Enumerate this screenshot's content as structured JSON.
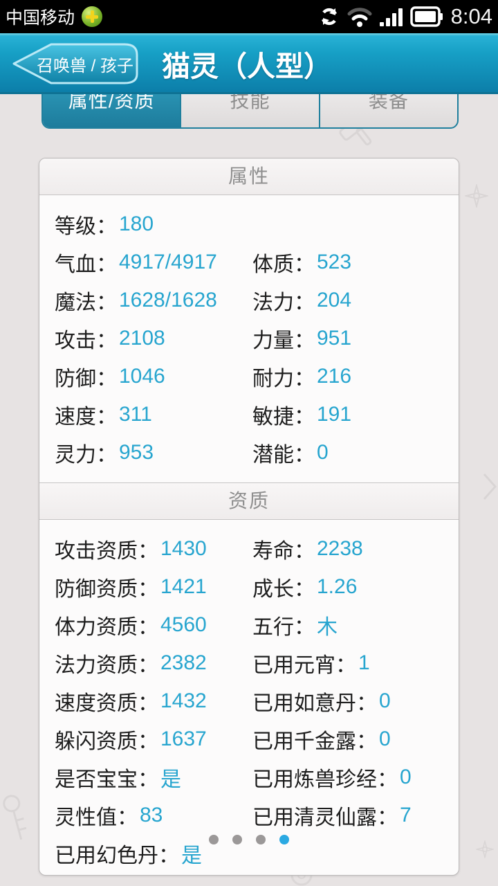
{
  "status_bar": {
    "carrier": "中国移动",
    "time": "8:04",
    "icons": [
      "carrier-app-icon",
      "sync-icon",
      "wifi-icon",
      "signal-icon",
      "battery-icon"
    ]
  },
  "header": {
    "back_label": "召唤兽 / 孩子",
    "title": "猫灵（人型）"
  },
  "tabs": [
    {
      "label": "属性/资质",
      "active": true
    },
    {
      "label": "技能",
      "active": false
    },
    {
      "label": "装备",
      "active": false
    }
  ],
  "sections": [
    {
      "title": "属性",
      "rows": [
        {
          "left": {
            "label": "等级：",
            "value": "180"
          },
          "right": null
        },
        {
          "left": {
            "label": "气血：",
            "value": "4917/4917"
          },
          "right": {
            "label": "体质：",
            "value": "523"
          }
        },
        {
          "left": {
            "label": "魔法：",
            "value": "1628/1628"
          },
          "right": {
            "label": "法力：",
            "value": "204"
          }
        },
        {
          "left": {
            "label": "攻击：",
            "value": "2108"
          },
          "right": {
            "label": "力量：",
            "value": "951"
          }
        },
        {
          "left": {
            "label": "防御：",
            "value": "1046"
          },
          "right": {
            "label": "耐力：",
            "value": "216"
          }
        },
        {
          "left": {
            "label": "速度：",
            "value": "311"
          },
          "right": {
            "label": "敏捷：",
            "value": "191"
          }
        },
        {
          "left": {
            "label": "灵力：",
            "value": "953"
          },
          "right": {
            "label": "潜能：",
            "value": "0"
          }
        }
      ]
    },
    {
      "title": "资质",
      "rows": [
        {
          "left": {
            "label": "攻击资质：",
            "value": "1430"
          },
          "right": {
            "label": "寿命：",
            "value": "2238"
          }
        },
        {
          "left": {
            "label": "防御资质：",
            "value": "1421"
          },
          "right": {
            "label": "成长：",
            "value": "1.26"
          }
        },
        {
          "left": {
            "label": "体力资质：",
            "value": "4560"
          },
          "right": {
            "label": "五行：",
            "value": "木"
          }
        },
        {
          "left": {
            "label": "法力资质：",
            "value": "2382"
          },
          "right": {
            "label": "已用元宵：",
            "value": "1"
          }
        },
        {
          "left": {
            "label": "速度资质：",
            "value": "1432"
          },
          "right": {
            "label": "已用如意丹：",
            "value": "0"
          }
        },
        {
          "left": {
            "label": "躲闪资质：",
            "value": "1637"
          },
          "right": {
            "label": "已用千金露：",
            "value": "0"
          }
        },
        {
          "left": {
            "label": "是否宝宝：",
            "value": "是"
          },
          "right": {
            "label": "已用炼兽珍经：",
            "value": "0"
          }
        },
        {
          "left": {
            "label": "灵性值：",
            "value": "83"
          },
          "right": {
            "label": "已用清灵仙露：",
            "value": "7"
          }
        },
        {
          "left": {
            "label": "已用幻色丹：",
            "value": "是"
          },
          "right": null
        }
      ]
    }
  ],
  "pager": {
    "count": 4,
    "active_index": 3
  },
  "colors": {
    "value_accent": "#27a5cf",
    "header_top": "#29b2d6",
    "header_bottom": "#0c7ea9",
    "tab_active": "#2892b6",
    "tab_border": "#1f7f9d",
    "status_bg": "#000000",
    "page_bg": "#e7e3e3",
    "dot_active": "#2ba9e2",
    "dot_inactive": "#9b9898"
  }
}
